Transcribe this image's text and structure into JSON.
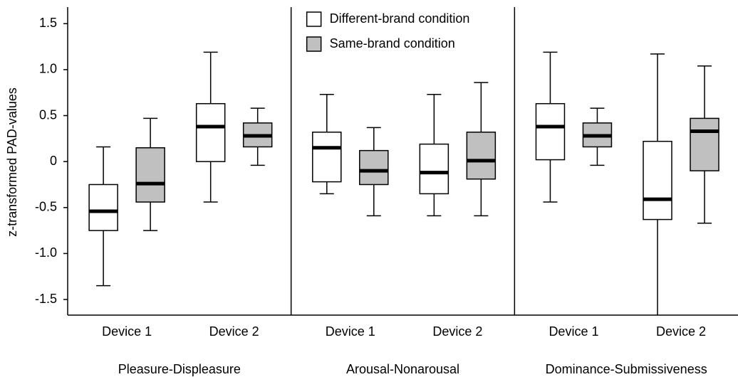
{
  "chart_data": {
    "type": "boxplot",
    "y_label": "z-transformed PAD-values",
    "groups": [
      "Pleasure-Displeasure",
      "Arousal-Nonarousal",
      "Dominance-Submissiveness"
    ],
    "categories": [
      "Device 1",
      "Device 2",
      "Device 1",
      "Device 2",
      "Device 1",
      "Device 2"
    ],
    "series": [
      {
        "name": "Different-brand condition",
        "color": "#ffffff",
        "values": [
          {
            "min": -1.35,
            "q1": -0.75,
            "median": -0.54,
            "q3": -0.25,
            "max": 0.16
          },
          {
            "min": -0.44,
            "q1": 0,
            "median": 0.38,
            "q3": 0.63,
            "max": 1.19
          },
          {
            "min": -0.35,
            "q1": -0.22,
            "median": 0.15,
            "q3": 0.32,
            "max": 0.73
          },
          {
            "min": -0.59,
            "q1": -0.35,
            "median": -0.12,
            "q3": 0.19,
            "max": 0.73
          },
          {
            "min": -0.44,
            "q1": 0.02,
            "median": 0.38,
            "q3": 0.63,
            "max": 1.19
          },
          {
            "min": -1.8,
            "q1": -0.63,
            "median": -0.41,
            "q3": 0.22,
            "max": 1.17
          }
        ]
      },
      {
        "name": "Same-brand condition",
        "color": "#c0c0c0",
        "values": [
          {
            "min": -0.75,
            "q1": -0.44,
            "median": -0.24,
            "q3": 0.15,
            "max": 0.47
          },
          {
            "min": -0.04,
            "q1": 0.16,
            "median": 0.28,
            "q3": 0.42,
            "max": 0.58
          },
          {
            "min": -0.59,
            "q1": -0.25,
            "median": -0.1,
            "q3": 0.12,
            "max": 0.37
          },
          {
            "min": -0.59,
            "q1": -0.19,
            "median": 0.01,
            "q3": 0.32,
            "max": 0.86
          },
          {
            "min": -0.04,
            "q1": 0.16,
            "median": 0.28,
            "q3": 0.42,
            "max": 0.58
          },
          {
            "min": -0.67,
            "q1": -0.1,
            "median": 0.33,
            "q3": 0.47,
            "max": 1.04
          }
        ]
      }
    ],
    "ylim": [
      -1.67,
      1.68
    ],
    "yticks": [
      1.5,
      {
        "value": 1,
        "label": "1.0"
      },
      0.5,
      0,
      -0.5,
      {
        "value": -1,
        "label": "-1.0"
      },
      -1.5
    ],
    "legend": "top"
  }
}
